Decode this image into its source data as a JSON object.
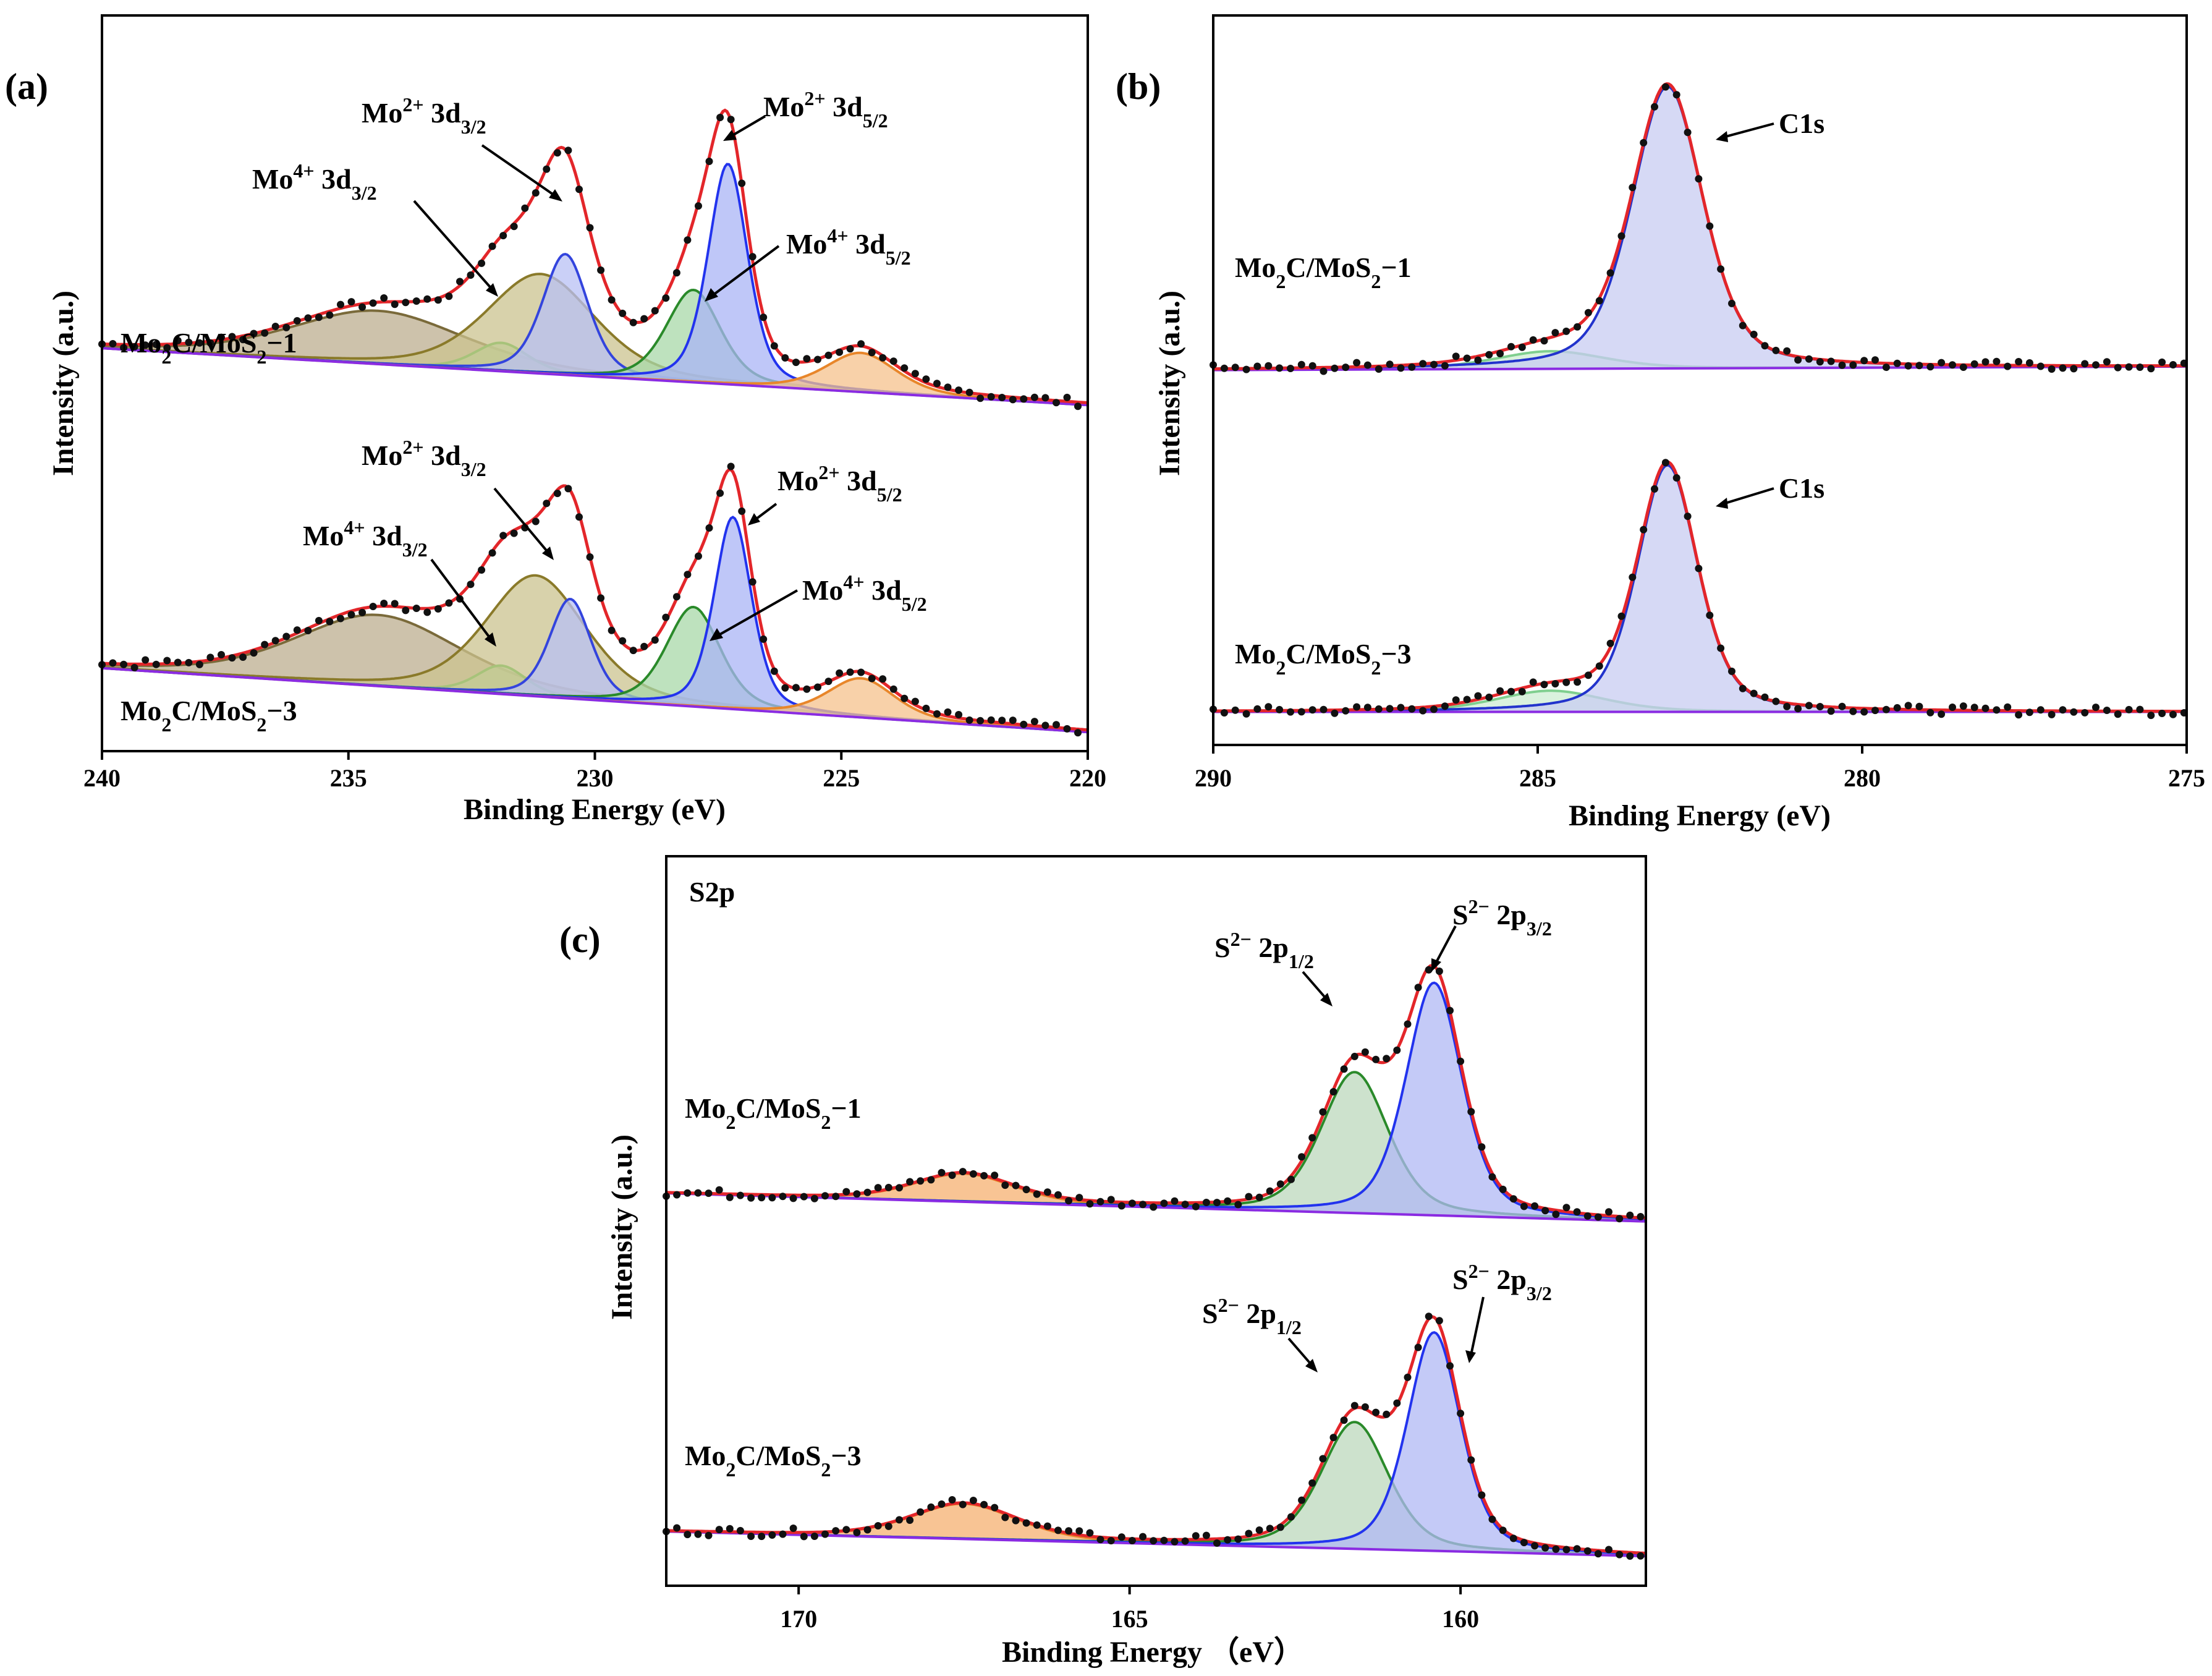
{
  "chart_data": [
    {
      "id": "a",
      "type": "line",
      "panel_label": "(a)",
      "title": "",
      "xlabel": "Binding Energy (eV)",
      "ylabel": "Intensity (a.u.)",
      "xlim": [
        240,
        220
      ],
      "x_reversed": true,
      "ylim": [
        0,
        1
      ],
      "xticks": [
        240,
        235,
        230,
        225,
        220
      ],
      "grid": false,
      "colors": {
        "envelope": "#e3262a",
        "baseline": "#8a2be2",
        "dots": "#111111"
      },
      "spectra": [
        {
          "sample": "Mo₂C/MoS₂−1",
          "sample_label": {
            "base1": "Mo",
            "sub1": "2",
            "base2": "C/MoS",
            "sub2": "2",
            "base3": "−1"
          },
          "baseline": [
            [
              240,
              0.545
            ],
            [
              220,
              0.465
            ]
          ],
          "components": [
            {
              "name": "broad",
              "center": 234.4,
              "fwhm": 4.2,
              "amp": 0.075,
              "color": "#7a6a3a",
              "fill": "#bcae8f"
            },
            {
              "name": "Mo4+ 3d3/2",
              "center": 231.9,
              "fwhm": 1.3,
              "amp": 0.04,
              "color": "#3cc43c",
              "fill": "#a8e6a8"
            },
            {
              "name": "broad2",
              "center": 231.1,
              "fwhm": 2.6,
              "amp": 0.14,
              "color": "#8a7a2a",
              "fill": "#cbc38f"
            },
            {
              "name": "Mo2+ 3d3/2",
              "center": 230.6,
              "fwhm": 1.1,
              "amp": 0.17,
              "color": "#3344dd",
              "fill": "#b8c0f4"
            },
            {
              "name": "Mo4+ 3d5/2",
              "center": 228.0,
              "fwhm": 1.3,
              "amp": 0.13,
              "color": "#2a8a2a",
              "fill": "#a8d8a8"
            },
            {
              "name": "Mo2+ 3d5/2",
              "center": 227.3,
              "fwhm": 0.95,
              "amp": 0.31,
              "color": "#2233ee",
              "fill": "#aab4f6"
            },
            {
              "name": "satellite",
              "center": 224.6,
              "fwhm": 1.7,
              "amp": 0.055,
              "color": "#e8862a",
              "fill": "#f6c28c"
            }
          ],
          "labels": [
            {
              "base": "Mo",
              "sup": "4+",
              "mid": " 3d",
              "sub": "3/2"
            },
            {
              "base": "Mo",
              "sup": "2+",
              "mid": " 3d",
              "sub": "3/2"
            },
            {
              "base": "Mo",
              "sup": "2+",
              "mid": " 3d",
              "sub": "5/2"
            },
            {
              "base": "Mo",
              "sup": "4+",
              "mid": " 3d",
              "sub": "5/2"
            }
          ]
        },
        {
          "sample": "Mo₂C/MoS₂−3",
          "sample_label": {
            "base1": "Mo",
            "sub1": "2",
            "base2": "C/MoS",
            "sub2": "2",
            "base3": "−3"
          },
          "baseline": [
            [
              240,
              0.095
            ],
            [
              220,
              0.005
            ]
          ],
          "components": [
            {
              "name": "broad",
              "center": 234.4,
              "fwhm": 4.0,
              "amp": 0.1,
              "color": "#7a6a3a",
              "fill": "#bcae8f"
            },
            {
              "name": "Mo4+ 3d3/2",
              "center": 231.9,
              "fwhm": 1.2,
              "amp": 0.04,
              "color": "#3cc43c",
              "fill": "#a8e6a8"
            },
            {
              "name": "broad2",
              "center": 231.2,
              "fwhm": 2.4,
              "amp": 0.17,
              "color": "#8a7a2a",
              "fill": "#cbc38f"
            },
            {
              "name": "Mo2+ 3d3/2",
              "center": 230.5,
              "fwhm": 1.0,
              "amp": 0.14,
              "color": "#3344dd",
              "fill": "#b8c0f4"
            },
            {
              "name": "Mo4+ 3d5/2",
              "center": 228.0,
              "fwhm": 1.3,
              "amp": 0.14,
              "color": "#2a8a2a",
              "fill": "#a8d8a8"
            },
            {
              "name": "Mo2+ 3d5/2",
              "center": 227.2,
              "fwhm": 0.9,
              "amp": 0.27,
              "color": "#2233ee",
              "fill": "#aab4f6"
            },
            {
              "name": "satellite",
              "center": 224.6,
              "fwhm": 1.6,
              "amp": 0.055,
              "color": "#e8862a",
              "fill": "#f6c28c"
            }
          ],
          "labels": [
            {
              "base": "Mo",
              "sup": "4+",
              "mid": " 3d",
              "sub": "3/2"
            },
            {
              "base": "Mo",
              "sup": "2+",
              "mid": " 3d",
              "sub": "3/2"
            },
            {
              "base": "Mo",
              "sup": "2+",
              "mid": " 3d",
              "sub": "5/2"
            },
            {
              "base": "Mo",
              "sup": "4+",
              "mid": " 3d",
              "sub": "5/2"
            }
          ]
        }
      ]
    },
    {
      "id": "b",
      "type": "line",
      "panel_label": "(b)",
      "title": "",
      "xlabel": "Binding Energy (eV)",
      "ylabel": "Intensity (a.u.)",
      "xlim": [
        290,
        275
      ],
      "x_reversed": true,
      "ylim": [
        0,
        1
      ],
      "xticks": [
        290,
        285,
        280,
        275
      ],
      "grid": false,
      "colors": {
        "envelope": "#e3262a",
        "baseline": "#8a2be2",
        "dots": "#111111"
      },
      "spectra": [
        {
          "sample": "Mo₂C/MoS₂−1",
          "sample_label": {
            "base1": "Mo",
            "sub1": "2",
            "base2": "C/MoS",
            "sub2": "2",
            "base3": "−1"
          },
          "baseline": [
            [
              290,
              0.51
            ],
            [
              275,
              0.515
            ]
          ],
          "components": [
            {
              "name": "minor",
              "center": 284.8,
              "fwhm": 2.0,
              "amp": 0.025,
              "color": "#7fcf8f",
              "fill": "#cdeed3"
            },
            {
              "name": "C1s",
              "center": 283.0,
              "fwhm": 1.3,
              "amp": 0.4,
              "color": "#2233cc",
              "fill": "#c8ccf2"
            }
          ],
          "labels": [
            {
              "text": "C1s"
            }
          ]
        },
        {
          "sample": "Mo₂C/MoS₂−3",
          "sample_label": {
            "base1": "Mo",
            "sub1": "2",
            "base2": "C/MoS",
            "sub2": "2",
            "base3": "−3"
          },
          "baseline": [
            [
              290,
              0.025
            ],
            [
              275,
              0.025
            ]
          ],
          "components": [
            {
              "name": "minor",
              "center": 284.8,
              "fwhm": 2.0,
              "amp": 0.03,
              "color": "#7fcf8f",
              "fill": "#cdeed3"
            },
            {
              "name": "C1s",
              "center": 283.0,
              "fwhm": 1.1,
              "amp": 0.35,
              "color": "#2233cc",
              "fill": "#c8ccf2"
            }
          ],
          "labels": [
            {
              "text": "C1s"
            }
          ]
        }
      ]
    },
    {
      "id": "c",
      "type": "line",
      "panel_label": "(c)",
      "title": "S2p",
      "xlabel": "Binding Energy （eV）",
      "ylabel": "Intensity (a.u.)",
      "xlim": [
        172,
        157.2
      ],
      "x_reversed": true,
      "ylim": [
        0,
        1
      ],
      "xticks": [
        170,
        165,
        160
      ],
      "grid": false,
      "colors": {
        "envelope": "#e3262a",
        "baseline": "#8a2be2",
        "dots": "#111111"
      },
      "spectra": [
        {
          "sample": "Mo₂C/MoS₂−1",
          "sample_label": {
            "base1": "Mo",
            "sub1": "2",
            "base2": "C/MoS",
            "sub2": "2",
            "base3": "−1"
          },
          "baseline": [
            [
              172,
              0.535
            ],
            [
              157.2,
              0.495
            ]
          ],
          "components": [
            {
              "name": "oxidized",
              "center": 167.5,
              "fwhm": 1.8,
              "amp": 0.04,
              "color": "#e8862a",
              "fill": "#f6b070"
            },
            {
              "name": "S2- 2p1/2",
              "center": 161.6,
              "fwhm": 1.2,
              "amp": 0.2,
              "color": "#2a8a2a",
              "fill": "#bcd8bc"
            },
            {
              "name": "S2- 2p3/2",
              "center": 160.4,
              "fwhm": 1.0,
              "amp": 0.33,
              "color": "#2233ee",
              "fill": "#b0b8f4"
            }
          ],
          "labels": [
            {
              "base": "S",
              "sup": "2−",
              "mid": " 2p",
              "sub": "1/2"
            },
            {
              "base": "S",
              "sup": "2−",
              "mid": " 2p",
              "sub": "3/2"
            }
          ]
        },
        {
          "sample": "Mo₂C/MoS₂−3",
          "sample_label": {
            "base1": "Mo",
            "sub1": "2",
            "base2": "C/MoS",
            "sub2": "2",
            "base3": "−3"
          },
          "baseline": [
            [
              172,
              0.055
            ],
            [
              157.2,
              0.02
            ]
          ],
          "components": [
            {
              "name": "oxidized",
              "center": 167.5,
              "fwhm": 1.9,
              "amp": 0.05,
              "color": "#e8862a",
              "fill": "#f6b070"
            },
            {
              "name": "S2- 2p1/2",
              "center": 161.6,
              "fwhm": 1.2,
              "amp": 0.18,
              "color": "#2a8a2a",
              "fill": "#bcd8bc"
            },
            {
              "name": "S2- 2p3/2",
              "center": 160.4,
              "fwhm": 0.95,
              "amp": 0.31,
              "color": "#2233ee",
              "fill": "#b0b8f4"
            }
          ],
          "labels": [
            {
              "base": "S",
              "sup": "2−",
              "mid": " 2p",
              "sub": "1/2"
            },
            {
              "base": "S",
              "sup": "2−",
              "mid": " 2p",
              "sub": "3/2"
            }
          ]
        }
      ]
    }
  ]
}
